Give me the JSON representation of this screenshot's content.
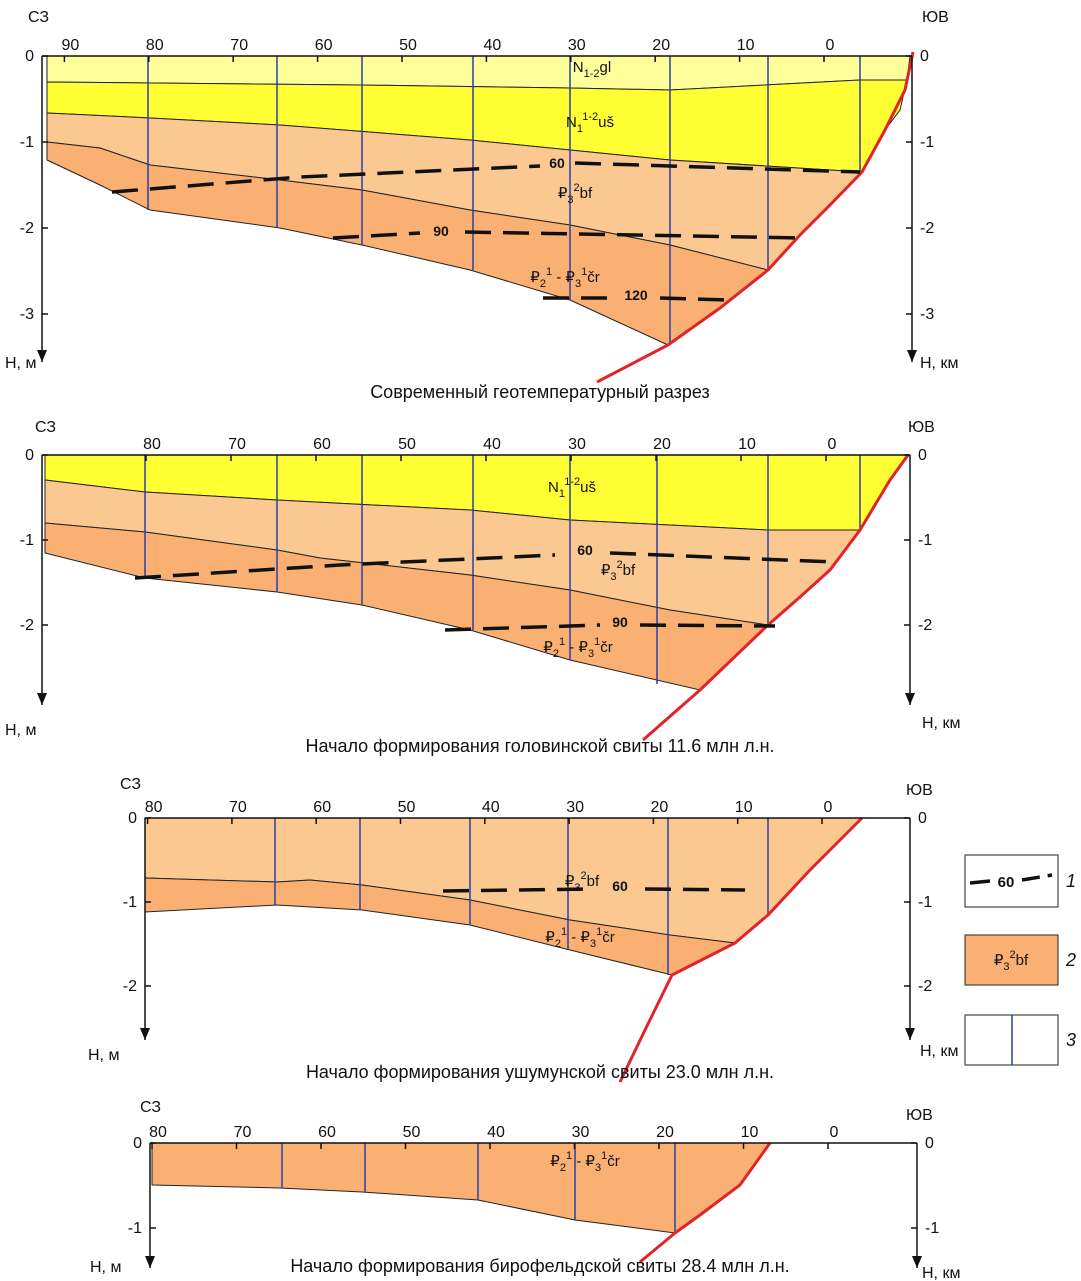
{
  "panels": [
    {
      "title": "Современный геотемпературный разрез",
      "left_end": "СЗ",
      "right_end": "ЮВ",
      "x_ticks": [
        90,
        80,
        70,
        60,
        50,
        40,
        30,
        20,
        10,
        0
      ],
      "left_depth_ticks": [
        0,
        -1,
        -2,
        -3
      ],
      "right_depth_ticks": [
        0,
        -1,
        -2,
        -3
      ],
      "left_axis_label": "Н, м",
      "right_axis_label": "Н, км",
      "formations": [
        [
          {
            "t": "N"
          },
          {
            "sub": "1-2"
          },
          {
            "t": "gl"
          }
        ],
        [
          {
            "t": "N"
          },
          {
            "sub": "1"
          },
          {
            "sup": "1-2"
          },
          {
            "t": "uš"
          }
        ],
        [
          {
            "t": "₽"
          },
          {
            "sub": "3"
          },
          {
            "sup": "2"
          },
          {
            "t": "bf"
          }
        ],
        [
          {
            "t": "₽"
          },
          {
            "sub": "2"
          },
          {
            "sup": "1"
          },
          {
            "t": " - ₽"
          },
          {
            "sub": "3"
          },
          {
            "sup": "1"
          },
          {
            "t": "čr"
          }
        ]
      ],
      "isotherms": [
        60,
        90,
        120
      ]
    },
    {
      "title": "Начало формирования головинской свиты 11.6 млн л.н.",
      "left_end": "СЗ",
      "right_end": "ЮВ",
      "x_ticks": [
        80,
        70,
        60,
        50,
        40,
        30,
        20,
        10,
        0
      ],
      "left_depth_ticks": [
        0,
        -1,
        -2
      ],
      "right_depth_ticks": [
        0,
        -1,
        -2
      ],
      "left_axis_label": "Н, м",
      "right_axis_label": "Н, км",
      "formations": [
        [
          {
            "t": "N"
          },
          {
            "sub": "1"
          },
          {
            "sup": "1-2"
          },
          {
            "t": "uš"
          }
        ],
        [
          {
            "t": "₽"
          },
          {
            "sub": "3"
          },
          {
            "sup": "2"
          },
          {
            "t": "bf"
          }
        ],
        [
          {
            "t": "₽"
          },
          {
            "sub": "2"
          },
          {
            "sup": "1"
          },
          {
            "t": " - ₽"
          },
          {
            "sub": "3"
          },
          {
            "sup": "1"
          },
          {
            "t": "čr"
          }
        ]
      ],
      "isotherms": [
        60,
        90
      ]
    },
    {
      "title": "Начало формирования ушумунской свиты 23.0 млн л.н.",
      "left_end": "СЗ",
      "right_end": "ЮВ",
      "x_ticks": [
        80,
        70,
        60,
        50,
        40,
        30,
        20,
        10,
        0
      ],
      "left_depth_ticks": [
        0,
        -1,
        -2
      ],
      "right_depth_ticks": [
        0,
        -1,
        -2
      ],
      "left_axis_label": "Н, м",
      "right_axis_label": "Н, км",
      "formations": [
        [
          {
            "t": "₽"
          },
          {
            "sub": "3"
          },
          {
            "sup": "2"
          },
          {
            "t": "bf"
          }
        ],
        [
          {
            "t": "₽"
          },
          {
            "sub": "2"
          },
          {
            "sup": "1"
          },
          {
            "t": " - ₽"
          },
          {
            "sub": "3"
          },
          {
            "sup": "1"
          },
          {
            "t": "čr"
          }
        ]
      ],
      "isotherms": [
        60
      ]
    },
    {
      "title": "Начало формирования бирофельдской свиты 28.4 млн л.н.",
      "left_end": "СЗ",
      "right_end": "ЮВ",
      "x_ticks": [
        80,
        70,
        60,
        50,
        40,
        30,
        20,
        10,
        0
      ],
      "left_depth_ticks": [
        0,
        -1
      ],
      "right_depth_ticks": [
        0,
        -1
      ],
      "left_axis_label": "Н, м",
      "right_axis_label": "Н, км",
      "formations": [
        [
          {
            "t": "₽"
          },
          {
            "sub": "2"
          },
          {
            "sup": "1"
          },
          {
            "t": " - ₽"
          },
          {
            "sub": "3"
          },
          {
            "sup": "1"
          },
          {
            "t": "čr"
          }
        ]
      ]
    }
  ],
  "legend": [
    {
      "number": 1,
      "sample": 60
    },
    {
      "number": 2,
      "sample": [
        {
          "t": "₽"
        },
        {
          "sub": "3"
        },
        {
          "sup": "2"
        },
        {
          "t": "bf"
        }
      ]
    },
    {
      "number": 3
    }
  ]
}
